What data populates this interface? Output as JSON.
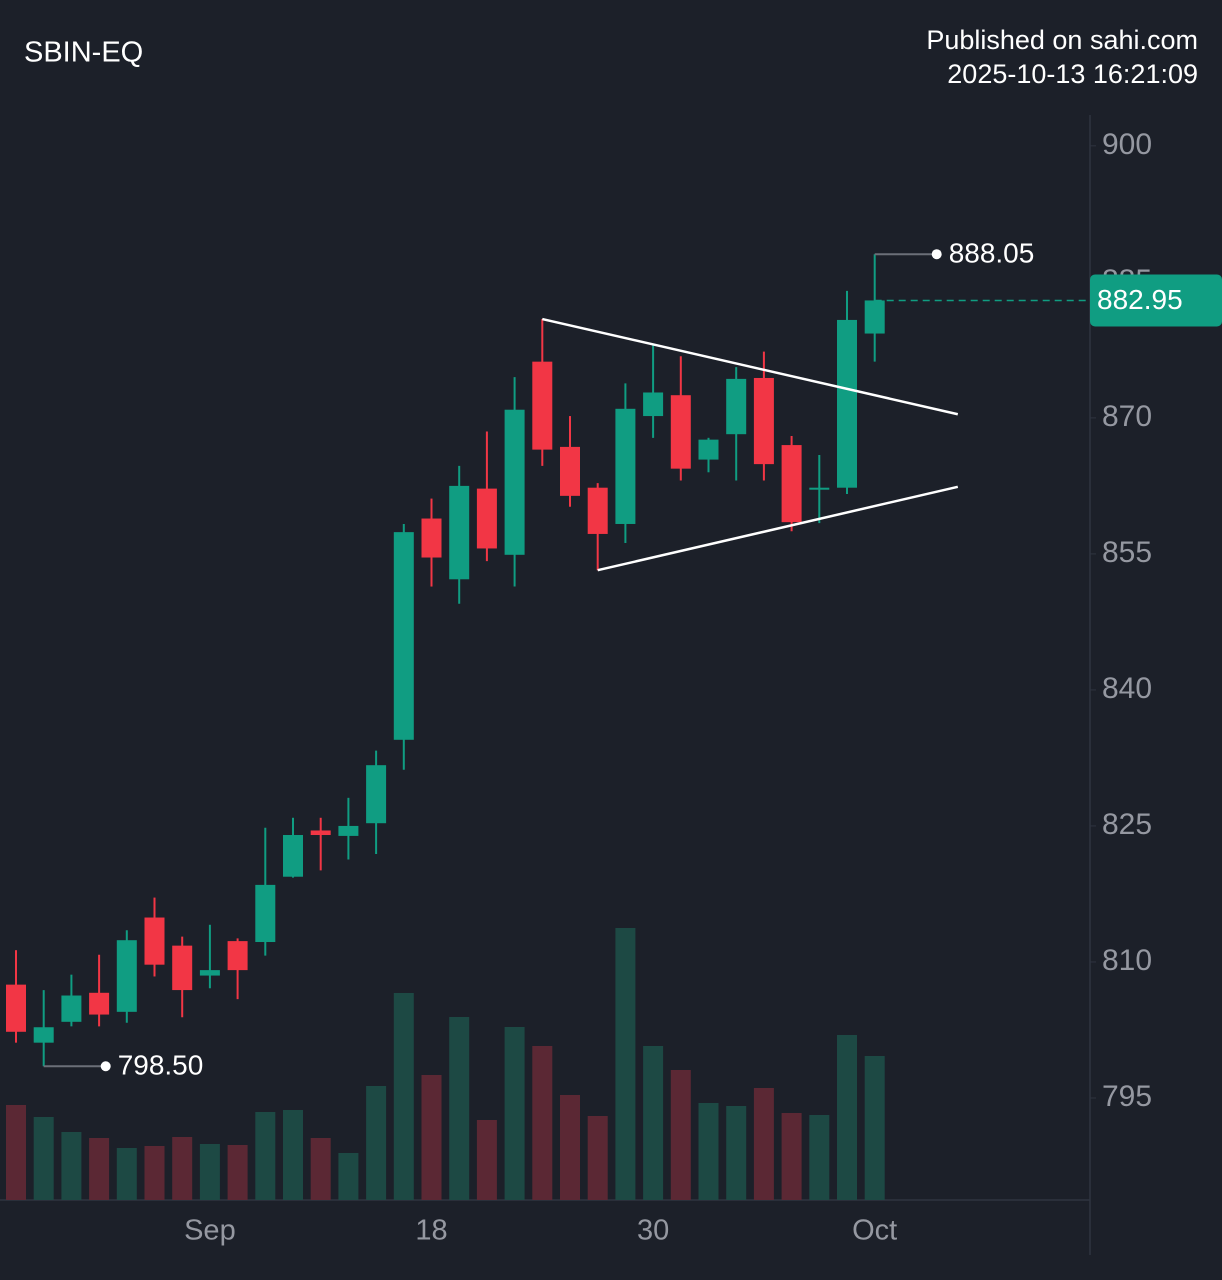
{
  "chart_data": {
    "type": "candlestick",
    "title": "SBIN-EQ",
    "publisher": "Published on sahi.com",
    "timestamp": "2025-10-13 16:21:09",
    "categories": [
      null,
      null,
      null,
      null,
      null,
      null,
      null,
      "Sep",
      null,
      null,
      null,
      null,
      null,
      null,
      null,
      "18",
      null,
      null,
      null,
      null,
      null,
      null,
      null,
      "30",
      null,
      null,
      null,
      null,
      null,
      null,
      null,
      "Oct"
    ],
    "open": [
      807.5,
      801.1,
      803.4,
      806.6,
      804.5,
      814.9,
      811.8,
      808.5,
      812.3,
      812.2,
      819.4,
      824.5,
      823.9,
      825.3,
      834.5,
      858.9,
      852.2,
      862.2,
      854.9,
      876.2,
      866.8,
      862.3,
      858.3,
      870.2,
      872.5,
      865.4,
      868.2,
      874.4,
      867.0,
      862.1,
      862.3,
      879.3
    ],
    "high": [
      811.3,
      806.9,
      808.6,
      810.8,
      813.5,
      817.1,
      812.8,
      814.1,
      812.6,
      824.8,
      825.9,
      825.9,
      828.1,
      833.3,
      858.3,
      861.1,
      864.7,
      868.5,
      874.5,
      880.9,
      870.2,
      862.8,
      873.8,
      878.1,
      876.8,
      867.8,
      875.6,
      877.3,
      868.0,
      865.9,
      884.0,
      888.05
    ],
    "low": [
      801.1,
      798.5,
      802.9,
      802.9,
      803.3,
      808.4,
      803.9,
      807.1,
      805.9,
      810.7,
      819.3,
      820.1,
      821.3,
      821.9,
      831.2,
      851.4,
      849.5,
      854.2,
      851.4,
      864.7,
      860.2,
      853.2,
      856.2,
      867.8,
      863.1,
      864.0,
      863.1,
      863.1,
      857.5,
      858.4,
      861.6,
      876.2
    ],
    "close": [
      802.3,
      802.8,
      806.3,
      804.2,
      812.4,
      809.7,
      806.9,
      809.1,
      809.1,
      818.5,
      824.0,
      824.0,
      825.0,
      831.7,
      857.4,
      854.6,
      862.5,
      855.6,
      870.9,
      866.5,
      861.4,
      857.2,
      871.0,
      872.8,
      864.4,
      867.6,
      874.3,
      864.9,
      858.5,
      862.3,
      880.8,
      882.95
    ],
    "volume": [
      95,
      83,
      68,
      62,
      52,
      54,
      63,
      56,
      55,
      88,
      90,
      62,
      47,
      114,
      207,
      125,
      183,
      80,
      173,
      154,
      105,
      84,
      272,
      154,
      130,
      97,
      94,
      112,
      87,
      85,
      165,
      144
    ],
    "up_color": "#109d82",
    "down_color": "#f23645",
    "volume_up_color": "#1d4944",
    "volume_down_color": "#5b2834",
    "ylim": [
      783.75,
      903.4
    ],
    "yticks": [
      795,
      810,
      825,
      840,
      855,
      870,
      885,
      900
    ],
    "last_price": {
      "value": 882.95,
      "label": "882.95"
    },
    "annotations": [
      {
        "index": 31,
        "value": 888.05,
        "label": "888.05"
      },
      {
        "index": 1,
        "value": 798.5,
        "label": "798.50"
      }
    ],
    "trendlines": [
      {
        "points": [
          [
            19,
            880.9
          ],
          [
            34,
            870.4
          ]
        ]
      },
      {
        "points": [
          [
            21,
            853.2
          ],
          [
            34,
            862.4
          ]
        ]
      }
    ]
  }
}
